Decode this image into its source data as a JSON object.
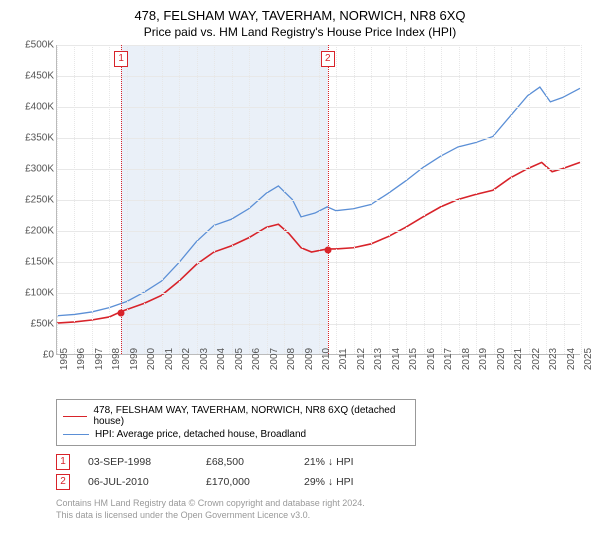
{
  "title": "478, FELSHAM WAY, TAVERHAM, NORWICH, NR8 6XQ",
  "subtitle": "Price paid vs. HM Land Registry's House Price Index (HPI)",
  "chart": {
    "type": "line",
    "background_color": "#ffffff",
    "grid_color": "#e8e8e8",
    "grid_dotted_color": "#e7e7e7",
    "axis_color": "#bbbbbb",
    "tick_font_size": 10,
    "tick_color": "#555555",
    "xlim": [
      1995,
      2025
    ],
    "ylim": [
      0,
      500000
    ],
    "ytick_step": 50000,
    "y_ticks": [
      "£0",
      "£50K",
      "£100K",
      "£150K",
      "£200K",
      "£250K",
      "£300K",
      "£350K",
      "£400K",
      "£450K",
      "£500K"
    ],
    "x_ticks": [
      "1995",
      "1996",
      "1997",
      "1998",
      "1999",
      "2000",
      "2001",
      "2002",
      "2003",
      "2004",
      "2005",
      "2006",
      "2007",
      "2008",
      "2009",
      "2010",
      "2011",
      "2012",
      "2013",
      "2014",
      "2015",
      "2016",
      "2017",
      "2018",
      "2019",
      "2020",
      "2021",
      "2022",
      "2023",
      "2024",
      "2025"
    ],
    "shade": {
      "start_year": 1998.67,
      "end_year": 2010.5,
      "color": "rgba(180,200,230,0.28)"
    },
    "series": [
      {
        "name": "property",
        "color": "#d8232a",
        "width": 1.6,
        "data": [
          [
            1995,
            50000
          ],
          [
            1996,
            52000
          ],
          [
            1997,
            55000
          ],
          [
            1998,
            60000
          ],
          [
            1998.67,
            68500
          ],
          [
            1999,
            72000
          ],
          [
            2000,
            82000
          ],
          [
            2001,
            95000
          ],
          [
            2002,
            118000
          ],
          [
            2003,
            145000
          ],
          [
            2004,
            165000
          ],
          [
            2005,
            175000
          ],
          [
            2006,
            188000
          ],
          [
            2007,
            205000
          ],
          [
            2007.7,
            210000
          ],
          [
            2008.3,
            195000
          ],
          [
            2009,
            172000
          ],
          [
            2009.6,
            165000
          ],
          [
            2010.5,
            170000
          ],
          [
            2011,
            170000
          ],
          [
            2012,
            172000
          ],
          [
            2013,
            178000
          ],
          [
            2014,
            190000
          ],
          [
            2015,
            205000
          ],
          [
            2016,
            222000
          ],
          [
            2017,
            238000
          ],
          [
            2018,
            250000
          ],
          [
            2019,
            258000
          ],
          [
            2020,
            265000
          ],
          [
            2021,
            285000
          ],
          [
            2022,
            300000
          ],
          [
            2022.8,
            310000
          ],
          [
            2023.4,
            295000
          ],
          [
            2024,
            300000
          ],
          [
            2025,
            310000
          ]
        ]
      },
      {
        "name": "hpi",
        "color": "#5b8fd6",
        "width": 1.3,
        "data": [
          [
            1995,
            62000
          ],
          [
            1996,
            64000
          ],
          [
            1997,
            68000
          ],
          [
            1998,
            75000
          ],
          [
            1999,
            85000
          ],
          [
            2000,
            100000
          ],
          [
            2001,
            118000
          ],
          [
            2002,
            148000
          ],
          [
            2003,
            182000
          ],
          [
            2004,
            208000
          ],
          [
            2005,
            218000
          ],
          [
            2006,
            235000
          ],
          [
            2007,
            260000
          ],
          [
            2007.7,
            272000
          ],
          [
            2008.5,
            250000
          ],
          [
            2009,
            222000
          ],
          [
            2009.8,
            228000
          ],
          [
            2010.5,
            238000
          ],
          [
            2011,
            232000
          ],
          [
            2012,
            235000
          ],
          [
            2013,
            242000
          ],
          [
            2014,
            260000
          ],
          [
            2015,
            280000
          ],
          [
            2016,
            302000
          ],
          [
            2017,
            320000
          ],
          [
            2018,
            335000
          ],
          [
            2019,
            342000
          ],
          [
            2020,
            352000
          ],
          [
            2021,
            385000
          ],
          [
            2022,
            418000
          ],
          [
            2022.7,
            432000
          ],
          [
            2023.3,
            408000
          ],
          [
            2024,
            415000
          ],
          [
            2025,
            430000
          ]
        ]
      }
    ],
    "markers": [
      {
        "id": "1",
        "year": 1998.67,
        "price": 68500,
        "box_top": 6
      },
      {
        "id": "2",
        "year": 2010.5,
        "price": 170000,
        "box_top": 6
      }
    ],
    "marker_box_border": "#d8232a",
    "dot_color": "#d8232a"
  },
  "legend": {
    "border_color": "#999999",
    "font_size": 10,
    "items": [
      {
        "color": "#d8232a",
        "width": 1.6,
        "label": "478, FELSHAM WAY, TAVERHAM, NORWICH, NR8 6XQ (detached house)"
      },
      {
        "color": "#5b8fd6",
        "width": 1.3,
        "label": "HPI: Average price, detached house, Broadland"
      }
    ]
  },
  "sales_table": {
    "rows": [
      {
        "id": "1",
        "date": "03-SEP-1998",
        "price": "£68,500",
        "diff": "21% ↓ HPI"
      },
      {
        "id": "2",
        "date": "06-JUL-2010",
        "price": "£170,000",
        "diff": "29% ↓ HPI"
      }
    ]
  },
  "footer": {
    "line1": "Contains HM Land Registry data © Crown copyright and database right 2024.",
    "line2": "This data is licensed under the Open Government Licence v3.0.",
    "color": "#999999",
    "font_size": 9
  }
}
